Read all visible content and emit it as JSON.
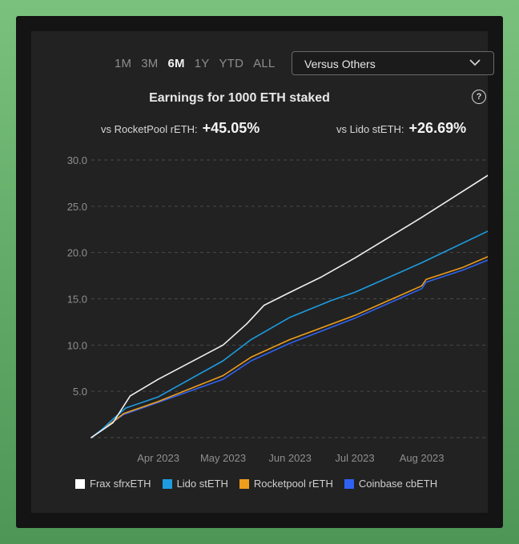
{
  "range_tabs": [
    "1M",
    "3M",
    "6M",
    "1Y",
    "YTD",
    "ALL"
  ],
  "active_range": "6M",
  "compare_select": {
    "value": "Versus Others"
  },
  "stats": {
    "rocketpool_label": "vs RocketPool rETH:",
    "rocketpool_value": "+45.05%",
    "lido_label": "vs Lido stETH:",
    "lido_value": "+26.69%"
  },
  "help_icon": {
    "glyph": "?",
    "icon": "question-circle-icon"
  },
  "chart_data": {
    "type": "line",
    "title": "Earnings for 1000 ETH staked",
    "xlabel": "",
    "ylabel": "",
    "ylim": [
      0,
      30
    ],
    "yticks": [
      5,
      10,
      15,
      20,
      25,
      30
    ],
    "ytick_labels": [
      "5.0",
      "10.0",
      "15.0",
      "20.0",
      "25.0",
      "30.0"
    ],
    "xlim": [
      "2023-03-01",
      "2023-09-05"
    ],
    "xticks": [
      "2023-04-01",
      "2023-05-01",
      "2023-06-01",
      "2023-07-01",
      "2023-08-01"
    ],
    "xtick_labels": [
      "Apr 2023",
      "May 2023",
      "Jun 2023",
      "Jul 2023",
      "Aug 2023"
    ],
    "grid": true,
    "legend": "bottom",
    "series": [
      {
        "name": "Frax sfrxETH",
        "color": "#f0f0f0",
        "x": [
          "2023-03-01",
          "2023-03-06",
          "2023-03-11",
          "2023-03-19",
          "2023-04-01",
          "2023-05-01",
          "2023-05-12",
          "2023-05-20",
          "2023-06-01",
          "2023-06-15",
          "2023-07-01",
          "2023-08-01",
          "2023-09-05"
        ],
        "y": [
          0,
          0.8,
          1.6,
          4.5,
          6.3,
          10,
          12.3,
          14.3,
          15.7,
          17.3,
          19.4,
          23.8,
          29
        ]
      },
      {
        "name": "Lido stETH",
        "color": "#1e9be0",
        "x": [
          "2023-03-01",
          "2023-03-06",
          "2023-03-11",
          "2023-03-17",
          "2023-04-01",
          "2023-05-01",
          "2023-05-14",
          "2023-06-01",
          "2023-06-20",
          "2023-07-01",
          "2023-08-01",
          "2023-09-05"
        ],
        "y": [
          0,
          0.9,
          2.0,
          3.2,
          4.4,
          8.3,
          10.6,
          13.0,
          14.8,
          15.7,
          18.9,
          22.8
        ]
      },
      {
        "name": "Rocketpool rETH",
        "color": "#ee9d1c",
        "x": [
          "2023-03-01",
          "2023-03-11",
          "2023-03-16",
          "2023-04-01",
          "2023-05-01",
          "2023-05-14",
          "2023-06-01",
          "2023-07-01",
          "2023-08-01",
          "2023-08-03",
          "2023-08-20",
          "2023-09-05"
        ],
        "y": [
          0,
          1.7,
          2.6,
          3.9,
          6.7,
          8.7,
          10.6,
          13.2,
          16.4,
          17.1,
          18.4,
          20.0
        ]
      },
      {
        "name": "Coinbase cbETH",
        "color": "#2f62f0",
        "x": [
          "2023-03-01",
          "2023-03-11",
          "2023-03-16",
          "2023-04-01",
          "2023-05-01",
          "2023-05-14",
          "2023-06-01",
          "2023-07-01",
          "2023-08-01",
          "2023-08-03",
          "2023-08-20",
          "2023-09-05"
        ],
        "y": [
          0,
          1.7,
          2.5,
          3.8,
          6.3,
          8.3,
          10.2,
          12.9,
          16.1,
          16.8,
          18.1,
          19.6
        ]
      }
    ]
  }
}
